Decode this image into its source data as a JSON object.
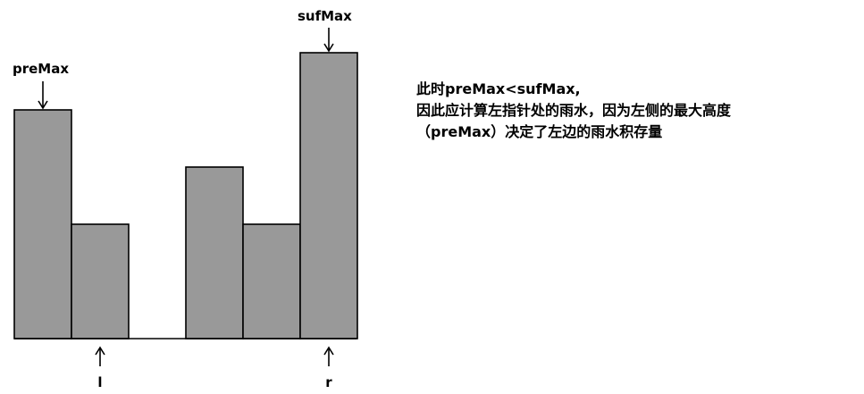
{
  "bars": [
    {
      "name": "bar-1",
      "height": 4
    },
    {
      "name": "bar-2",
      "height": 2
    },
    {
      "name": "bar-3",
      "height": 0
    },
    {
      "name": "bar-4",
      "height": 3
    },
    {
      "name": "bar-5",
      "height": 2
    },
    {
      "name": "bar-6",
      "height": 5
    }
  ],
  "labels": {
    "pre_max": "preMax",
    "suf_max": "sufMax",
    "left_pointer": "l",
    "right_pointer": "r"
  },
  "pointers": {
    "pre_max_index": 0,
    "suf_max_index": 5,
    "left_index": 1,
    "right_index": 5
  },
  "explanation": {
    "line1": "此时preMax<sufMax,",
    "line2": "因此应计算左指针处的雨水，因为左侧的最大高度",
    "line3": "（preMax）决定了左边的雨水积存量"
  }
}
